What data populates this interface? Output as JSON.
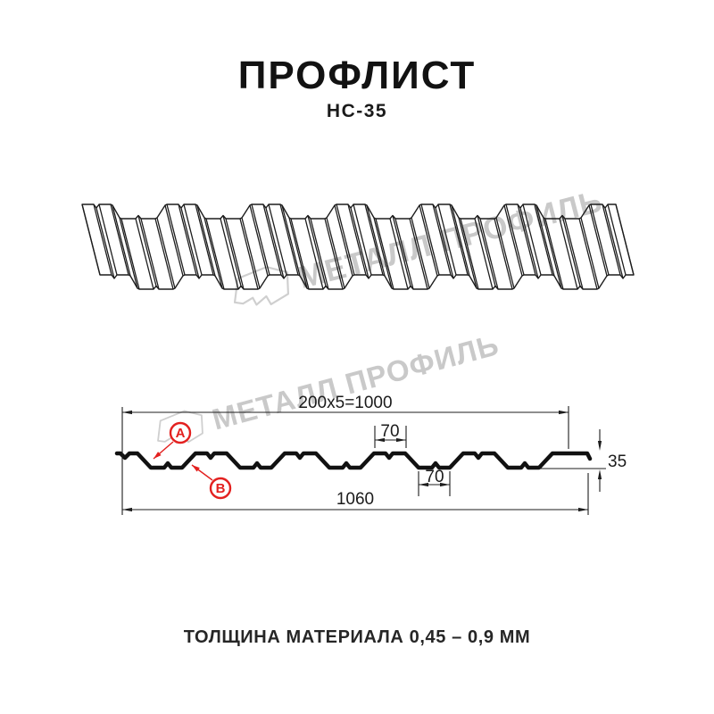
{
  "header": {
    "title": "ПРОФЛИСТ",
    "subtitle": "НС-35"
  },
  "watermark": {
    "brand": "МЕТАЛЛ ПРОФИЛЬ"
  },
  "diagram": {
    "dims": {
      "coverage": "200x5=1000",
      "rib_top_width": "70",
      "rib_bottom_width": "70",
      "profile_height": "35",
      "overall_width": "1060"
    },
    "callouts": {
      "a": "A",
      "b": "B"
    }
  },
  "footer": {
    "thickness_note": "ТОЛЩИНА МАТЕРИАЛА 0,45 – 0,9 ММ"
  },
  "colors": {
    "accent_red": "#e3201f",
    "line_color": "#1d1d1d",
    "watermark_gray": "#c9c9c9"
  }
}
